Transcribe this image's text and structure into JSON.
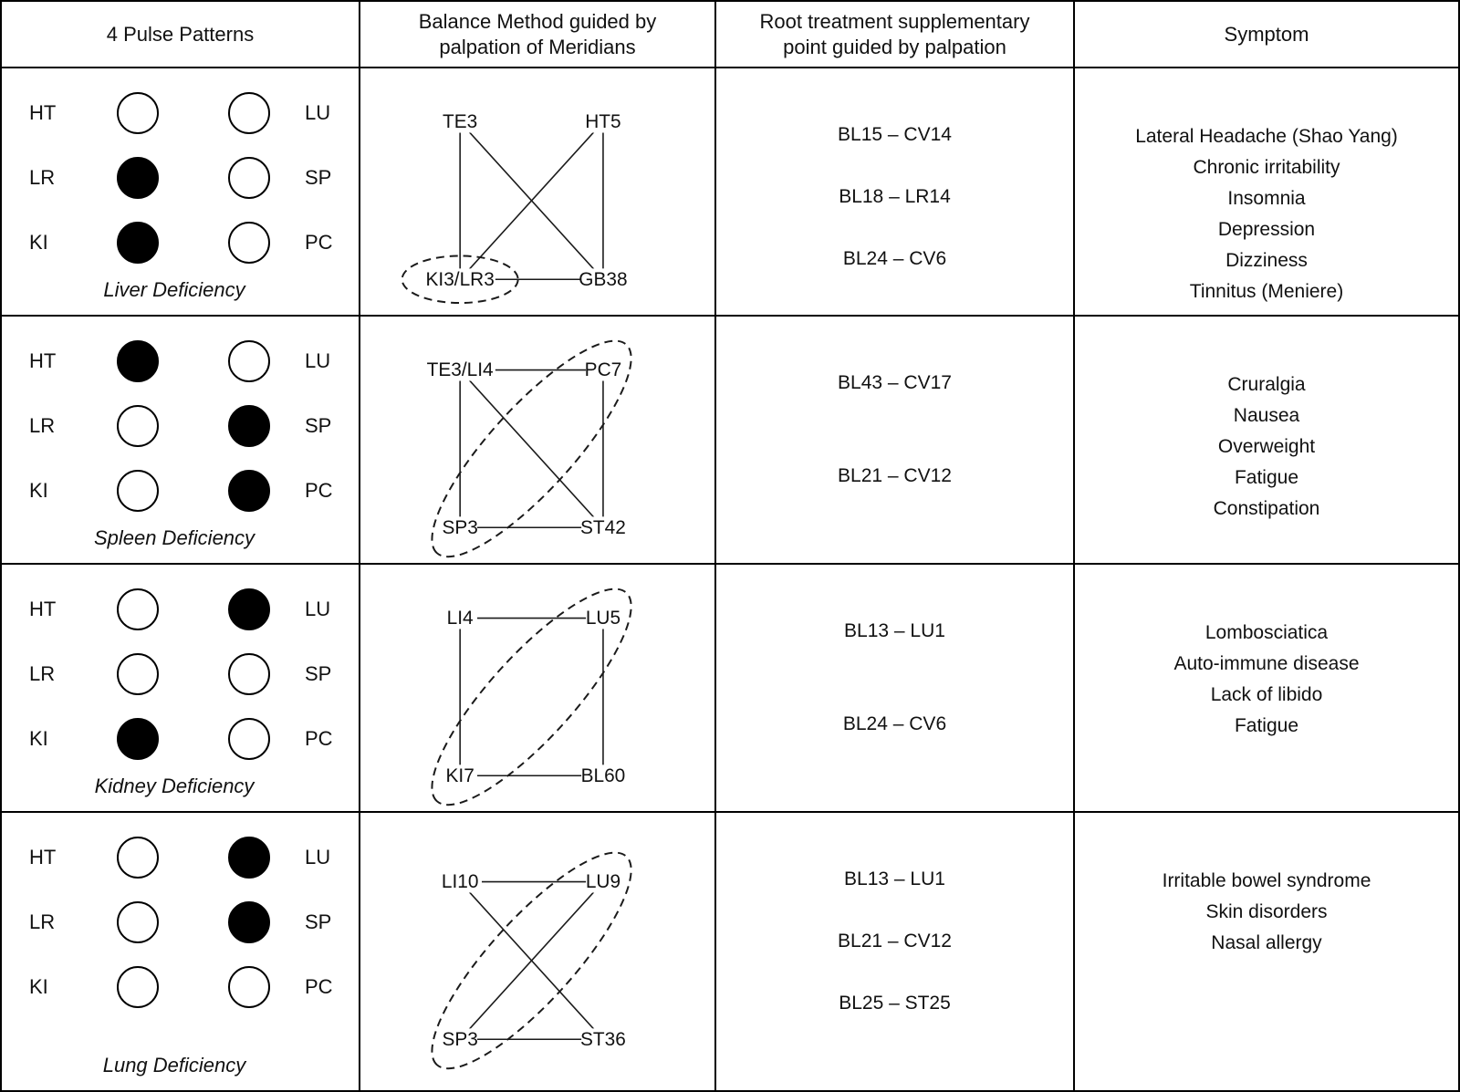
{
  "header": {
    "columns": [
      "4 Pulse Patterns",
      "Balance Method guided by palpation of Meridians",
      "Root treatment supplementary point guided by palpation",
      "Symptom"
    ]
  },
  "pulse_labels": {
    "left": [
      "HT",
      "LR",
      "KI"
    ],
    "right": [
      "LU",
      "SP",
      "PC"
    ]
  },
  "rows": [
    {
      "deficiency": "Liver Deficiency",
      "pulse": {
        "left": [
          "empty",
          "filled",
          "filled"
        ],
        "right": [
          "empty",
          "empty",
          "empty"
        ]
      },
      "diagram": {
        "nodes": {
          "tl": "TE3",
          "tr": "HT5",
          "bl": "KI3/LR3",
          "br": "GB38"
        },
        "edges": [
          [
            "tl",
            "bl"
          ],
          [
            "tl",
            "br"
          ],
          [
            "tr",
            "bl"
          ],
          [
            "tr",
            "br"
          ],
          [
            "bl",
            "br"
          ]
        ],
        "highlight": {
          "type": "node",
          "target": "bl"
        }
      },
      "root_points": [
        "BL15 – CV14",
        "BL18 – LR14",
        "BL24 – CV6"
      ],
      "symptoms": [
        "Lateral Headache (Shao Yang)",
        "Chronic irritability",
        "Insomnia",
        "Depression",
        "Dizziness",
        "Tinnitus (Meniere)"
      ]
    },
    {
      "deficiency": "Spleen Deficiency",
      "pulse": {
        "left": [
          "filled",
          "empty",
          "empty"
        ],
        "right": [
          "empty",
          "filled",
          "filled"
        ]
      },
      "diagram": {
        "nodes": {
          "tl": "TE3/LI4",
          "tr": "PC7",
          "bl": "SP3",
          "br": "ST42"
        },
        "edges": [
          [
            "tl",
            "tr"
          ],
          [
            "tl",
            "bl"
          ],
          [
            "tl",
            "br"
          ],
          [
            "tr",
            "br"
          ],
          [
            "bl",
            "br"
          ]
        ],
        "highlight": {
          "type": "diagonal",
          "from": "tr",
          "to": "bl"
        }
      },
      "root_points": [
        "BL43 – CV17",
        "BL21 – CV12"
      ],
      "symptoms": [
        "Cruralgia",
        "Nausea",
        "Overweight",
        "Fatigue",
        "Constipation"
      ]
    },
    {
      "deficiency": "Kidney Deficiency",
      "pulse": {
        "left": [
          "empty",
          "empty",
          "filled"
        ],
        "right": [
          "filled",
          "empty",
          "empty"
        ]
      },
      "diagram": {
        "nodes": {
          "tl": "LI4",
          "tr": "LU5",
          "bl": "KI7",
          "br": "BL60"
        },
        "edges": [
          [
            "tl",
            "tr"
          ],
          [
            "tl",
            "bl"
          ],
          [
            "tr",
            "br"
          ],
          [
            "bl",
            "br"
          ]
        ],
        "highlight": {
          "type": "diagonal",
          "from": "tr",
          "to": "bl"
        }
      },
      "root_points": [
        "BL13 – LU1",
        "BL24 – CV6"
      ],
      "symptoms": [
        "Lombosciatica",
        "Auto-immune disease",
        "Lack of libido",
        "Fatigue"
      ]
    },
    {
      "deficiency": "Lung Deficiency",
      "pulse": {
        "left": [
          "empty",
          "empty",
          "empty"
        ],
        "right": [
          "filled",
          "filled",
          "empty"
        ]
      },
      "diagram": {
        "nodes": {
          "tl": "LI10",
          "tr": "LU9",
          "bl": "SP3",
          "br": "ST36"
        },
        "edges": [
          [
            "tl",
            "tr"
          ],
          [
            "tl",
            "br"
          ],
          [
            "tr",
            "bl"
          ],
          [
            "bl",
            "br"
          ]
        ],
        "highlight": {
          "type": "diagonal",
          "from": "tr",
          "to": "bl"
        }
      },
      "root_points": [
        "BL13 – LU1",
        "BL21 – CV12",
        "BL25 – ST25"
      ],
      "symptoms": [
        "Irritable bowel syndrome",
        "Skin disorders",
        "Nasal allergy"
      ]
    }
  ]
}
